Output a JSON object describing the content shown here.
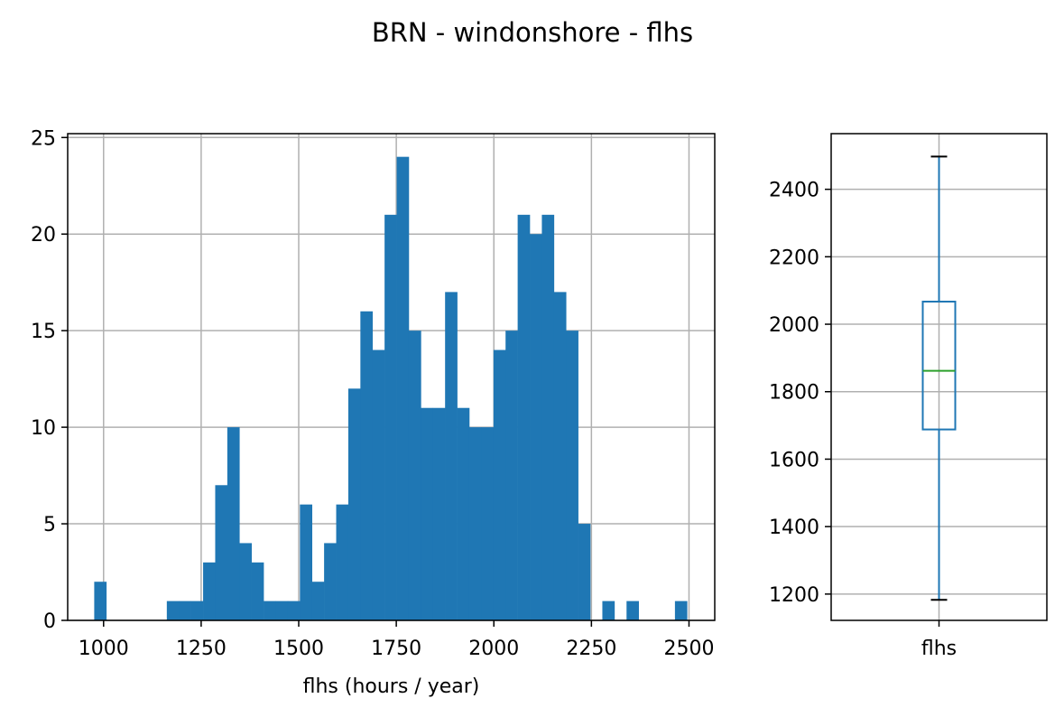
{
  "title": "BRN - windonshore - flhs",
  "colors": {
    "bar": "#1f77b4",
    "box": "#1f77b4",
    "median": "#2ca02c",
    "grid": "#b0b0b0",
    "axes": "#000000"
  },
  "chart_data": [
    {
      "type": "histogram",
      "xlabel": "flhs (hours / year)",
      "ylabel": "",
      "xlim": [
        908,
        2566
      ],
      "ylim": [
        0,
        25.2
      ],
      "xticks": [
        1000,
        1250,
        1500,
        1750,
        2000,
        2250,
        2500
      ],
      "yticks": [
        0,
        5,
        10,
        15,
        20,
        25
      ],
      "grid": true,
      "bin_edges": [
        976,
        1007,
        1038,
        1069,
        1100,
        1131,
        1162,
        1193,
        1224,
        1255,
        1286,
        1317,
        1348,
        1379,
        1410,
        1441,
        1472,
        1503,
        1534,
        1565,
        1596,
        1627,
        1658,
        1689,
        1720,
        1751,
        1782,
        1813,
        1844,
        1875,
        1906,
        1937,
        1968,
        1999,
        2030,
        2061,
        2092,
        2123,
        2154,
        2185,
        2216,
        2247,
        2278,
        2309,
        2340,
        2371,
        2402,
        2433,
        2464,
        2495
      ],
      "counts": [
        2,
        0,
        0,
        0,
        0,
        0,
        1,
        1,
        1,
        3,
        7,
        10,
        4,
        3,
        1,
        1,
        1,
        6,
        2,
        4,
        6,
        12,
        16,
        14,
        21,
        24,
        15,
        11,
        11,
        17,
        11,
        10,
        10,
        14,
        15,
        21,
        20,
        21,
        17,
        15,
        5,
        0,
        1,
        0,
        1,
        0,
        0,
        0,
        1
      ]
    },
    {
      "type": "box",
      "xlabel": "",
      "ylabel": "",
      "categories": [
        "flhs"
      ],
      "ylim": [
        1122,
        2565
      ],
      "yticks": [
        1200,
        1400,
        1600,
        1800,
        2000,
        2200,
        2400
      ],
      "grid": true,
      "whisker_low": 1183,
      "q1": 1688,
      "median": 1862,
      "q3": 2067,
      "whisker_high": 2497
    }
  ]
}
